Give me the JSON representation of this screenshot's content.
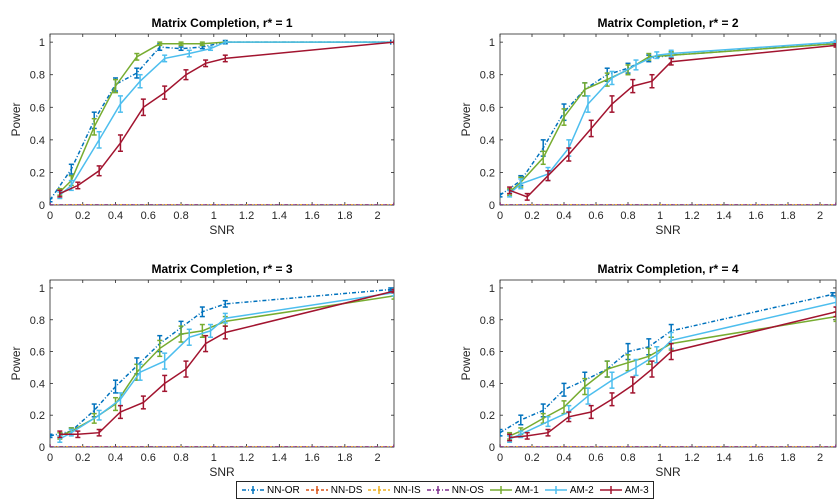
{
  "legend": {
    "entries": [
      {
        "label": "NN-OR",
        "color": "#0072BD",
        "dash": "4,2,1,2"
      },
      {
        "label": "NN-DS",
        "color": "#D95319",
        "dash": "3,2"
      },
      {
        "label": "NN-IS",
        "color": "#EDB120",
        "dash": "3,2"
      },
      {
        "label": "NN-OS",
        "color": "#7E2F8E",
        "dash": "4,2,1,2"
      },
      {
        "label": "AM-1",
        "color": "#77AC30",
        "dash": ""
      },
      {
        "label": "AM-2",
        "color": "#4DBEEE",
        "dash": ""
      },
      {
        "label": "AM-3",
        "color": "#A2142F",
        "dash": ""
      }
    ]
  },
  "chart_data": [
    {
      "type": "line",
      "title": "Matrix Completion, r* = 1",
      "xlabel": "SNR",
      "ylabel": "Power",
      "xlim": [
        0,
        2.1
      ],
      "ylim": [
        0,
        1.05
      ],
      "xticks": [
        "0",
        "0.2",
        "0.4",
        "0.6",
        "0.8",
        "1",
        "1.2",
        "1.4",
        "1.6",
        "1.8",
        "2"
      ],
      "yticks": [
        "0",
        "0.2",
        "0.4",
        "0.6",
        "0.8",
        "1"
      ],
      "series": [
        {
          "name": "NN-OR",
          "x": [
            0,
            0.13,
            0.27,
            0.4,
            0.53,
            0.67,
            0.8,
            0.93,
            1.07,
            2.08
          ],
          "y": [
            0.03,
            0.22,
            0.52,
            0.74,
            0.81,
            0.97,
            0.96,
            0.97,
            1.0,
            1.0
          ],
          "err": [
            0.01,
            0.03,
            0.05,
            0.04,
            0.03,
            0.02,
            0.01,
            0.01,
            0.01,
            0.0
          ]
        },
        {
          "name": "NN-DS",
          "x": [
            0,
            2.1
          ],
          "y": [
            0.0,
            0.0
          ],
          "err": [
            0.0,
            0.0
          ]
        },
        {
          "name": "NN-IS",
          "x": [
            0,
            2.1
          ],
          "y": [
            0.0,
            0.0
          ],
          "err": [
            0.0,
            0.0
          ]
        },
        {
          "name": "NN-OS",
          "x": [
            0,
            2.1
          ],
          "y": [
            0.0,
            0.0
          ],
          "err": [
            0.0,
            0.0
          ]
        },
        {
          "name": "AM-1",
          "x": [
            0.06,
            0.13,
            0.27,
            0.4,
            0.53,
            0.67,
            0.8,
            0.93,
            1.07,
            2.1
          ],
          "y": [
            0.08,
            0.15,
            0.48,
            0.73,
            0.91,
            0.99,
            0.99,
            0.99,
            1.0,
            1.0
          ],
          "err": [
            0.02,
            0.03,
            0.05,
            0.04,
            0.02,
            0.01,
            0.01,
            0.01,
            0.0,
            0.0
          ]
        },
        {
          "name": "AM-2",
          "x": [
            0.06,
            0.13,
            0.3,
            0.43,
            0.55,
            0.7,
            0.85,
            0.98,
            1.07,
            2.1
          ],
          "y": [
            0.06,
            0.12,
            0.4,
            0.62,
            0.76,
            0.9,
            0.93,
            0.96,
            1.0,
            1.0
          ],
          "err": [
            0.02,
            0.03,
            0.05,
            0.05,
            0.04,
            0.02,
            0.02,
            0.01,
            0.0,
            0.0
          ]
        },
        {
          "name": "AM-3",
          "x": [
            0.06,
            0.17,
            0.3,
            0.43,
            0.57,
            0.7,
            0.83,
            0.95,
            1.07,
            2.1
          ],
          "y": [
            0.07,
            0.12,
            0.21,
            0.38,
            0.6,
            0.69,
            0.8,
            0.87,
            0.9,
            1.0
          ],
          "err": [
            0.02,
            0.02,
            0.03,
            0.05,
            0.05,
            0.04,
            0.03,
            0.02,
            0.02,
            0.0
          ]
        }
      ]
    },
    {
      "type": "line",
      "title": "Matrix Completion, r* = 2",
      "xlabel": "SNR",
      "ylabel": "Power",
      "xlim": [
        0,
        2.1
      ],
      "ylim": [
        0,
        1.05
      ],
      "xticks": [
        "0",
        "0.2",
        "0.4",
        "0.6",
        "0.8",
        "1",
        "1.2",
        "1.4",
        "1.6",
        "1.8",
        "2"
      ],
      "yticks": [
        "0",
        "0.2",
        "0.4",
        "0.6",
        "0.8",
        "1"
      ],
      "series": [
        {
          "name": "NN-OR",
          "x": [
            0,
            0.13,
            0.27,
            0.4,
            0.53,
            0.67,
            0.8,
            0.93,
            1.07,
            2.08
          ],
          "y": [
            0.06,
            0.15,
            0.35,
            0.57,
            0.71,
            0.8,
            0.84,
            0.9,
            0.92,
            0.99
          ],
          "err": [
            0.01,
            0.03,
            0.05,
            0.05,
            0.04,
            0.04,
            0.03,
            0.02,
            0.02,
            0.01
          ]
        },
        {
          "name": "NN-DS",
          "x": [
            0,
            2.1
          ],
          "y": [
            0.0,
            0.0
          ],
          "err": [
            0.0,
            0.0
          ]
        },
        {
          "name": "NN-IS",
          "x": [
            0,
            2.1
          ],
          "y": [
            0.0,
            0.0
          ],
          "err": [
            0.0,
            0.0
          ]
        },
        {
          "name": "NN-OS",
          "x": [
            0,
            2.1
          ],
          "y": [
            0.0,
            0.0
          ],
          "err": [
            0.0,
            0.0
          ]
        },
        {
          "name": "AM-1",
          "x": [
            0.06,
            0.13,
            0.27,
            0.4,
            0.53,
            0.67,
            0.8,
            0.93,
            1.07,
            2.1
          ],
          "y": [
            0.08,
            0.14,
            0.29,
            0.54,
            0.71,
            0.77,
            0.83,
            0.91,
            0.92,
            0.99
          ],
          "err": [
            0.02,
            0.03,
            0.04,
            0.05,
            0.04,
            0.04,
            0.03,
            0.02,
            0.02,
            0.01
          ]
        },
        {
          "name": "AM-2",
          "x": [
            0.06,
            0.13,
            0.3,
            0.43,
            0.55,
            0.7,
            0.85,
            0.98,
            1.07,
            2.1
          ],
          "y": [
            0.07,
            0.13,
            0.19,
            0.35,
            0.62,
            0.78,
            0.86,
            0.92,
            0.93,
            1.0
          ],
          "err": [
            0.02,
            0.03,
            0.04,
            0.05,
            0.05,
            0.04,
            0.03,
            0.02,
            0.02,
            0.01
          ]
        },
        {
          "name": "AM-3",
          "x": [
            0.06,
            0.17,
            0.3,
            0.43,
            0.57,
            0.7,
            0.83,
            0.95,
            1.07,
            2.1
          ],
          "y": [
            0.09,
            0.05,
            0.18,
            0.31,
            0.47,
            0.62,
            0.73,
            0.76,
            0.88,
            0.98
          ],
          "err": [
            0.02,
            0.02,
            0.03,
            0.04,
            0.05,
            0.05,
            0.04,
            0.04,
            0.02,
            0.01
          ]
        }
      ]
    },
    {
      "type": "line",
      "title": "Matrix Completion, r* = 3",
      "xlabel": "SNR",
      "ylabel": "Power",
      "xlim": [
        0,
        2.1
      ],
      "ylim": [
        0,
        1.05
      ],
      "xticks": [
        "0",
        "0.2",
        "0.4",
        "0.6",
        "0.8",
        "1",
        "1.2",
        "1.4",
        "1.6",
        "1.8",
        "2"
      ],
      "yticks": [
        "0",
        "0.2",
        "0.4",
        "0.6",
        "0.8",
        "1"
      ],
      "series": [
        {
          "name": "NN-OR",
          "x": [
            0,
            0.13,
            0.27,
            0.4,
            0.53,
            0.67,
            0.8,
            0.93,
            1.07,
            2.08
          ],
          "y": [
            0.07,
            0.1,
            0.23,
            0.38,
            0.51,
            0.65,
            0.75,
            0.85,
            0.9,
            0.99
          ],
          "err": [
            0.01,
            0.02,
            0.04,
            0.04,
            0.05,
            0.05,
            0.04,
            0.03,
            0.02,
            0.01
          ]
        },
        {
          "name": "NN-DS",
          "x": [
            0,
            2.1
          ],
          "y": [
            0.0,
            0.0
          ],
          "err": [
            0.0,
            0.0
          ]
        },
        {
          "name": "NN-IS",
          "x": [
            0,
            2.1
          ],
          "y": [
            0.0,
            0.0
          ],
          "err": [
            0.0,
            0.0
          ]
        },
        {
          "name": "NN-OS",
          "x": [
            0,
            2.1
          ],
          "y": [
            0.0,
            0.0
          ],
          "err": [
            0.0,
            0.0
          ]
        },
        {
          "name": "AM-1",
          "x": [
            0.06,
            0.13,
            0.27,
            0.4,
            0.53,
            0.67,
            0.8,
            0.93,
            1.07,
            2.1
          ],
          "y": [
            0.07,
            0.1,
            0.18,
            0.27,
            0.47,
            0.62,
            0.71,
            0.73,
            0.79,
            0.95
          ],
          "err": [
            0.02,
            0.02,
            0.03,
            0.04,
            0.05,
            0.05,
            0.05,
            0.04,
            0.03,
            0.02
          ]
        },
        {
          "name": "AM-2",
          "x": [
            0.06,
            0.13,
            0.3,
            0.43,
            0.55,
            0.7,
            0.85,
            0.98,
            1.07,
            2.1
          ],
          "y": [
            0.05,
            0.09,
            0.2,
            0.3,
            0.47,
            0.54,
            0.69,
            0.73,
            0.81,
            0.97
          ],
          "err": [
            0.02,
            0.02,
            0.03,
            0.04,
            0.05,
            0.05,
            0.05,
            0.04,
            0.03,
            0.02
          ]
        },
        {
          "name": "AM-3",
          "x": [
            0.06,
            0.17,
            0.3,
            0.43,
            0.57,
            0.7,
            0.83,
            0.95,
            1.07,
            2.1
          ],
          "y": [
            0.08,
            0.08,
            0.09,
            0.22,
            0.28,
            0.4,
            0.49,
            0.65,
            0.72,
            0.98
          ],
          "err": [
            0.02,
            0.02,
            0.02,
            0.04,
            0.04,
            0.05,
            0.05,
            0.05,
            0.04,
            0.01
          ]
        }
      ]
    },
    {
      "type": "line",
      "title": "Matrix Completion, r* = 4",
      "xlabel": "SNR",
      "ylabel": "Power",
      "xlim": [
        0,
        2.1
      ],
      "ylim": [
        0,
        1.05
      ],
      "xticks": [
        "0",
        "0.2",
        "0.4",
        "0.6",
        "0.8",
        "1",
        "1.2",
        "1.4",
        "1.6",
        "1.8",
        "2"
      ],
      "yticks": [
        "0",
        "0.2",
        "0.4",
        "0.6",
        "0.8",
        "1"
      ],
      "series": [
        {
          "name": "NN-OR",
          "x": [
            0,
            0.13,
            0.27,
            0.4,
            0.53,
            0.67,
            0.8,
            0.93,
            1.07,
            2.08
          ],
          "y": [
            0.09,
            0.17,
            0.23,
            0.36,
            0.42,
            0.49,
            0.6,
            0.63,
            0.73,
            0.96
          ],
          "err": [
            0.02,
            0.03,
            0.04,
            0.04,
            0.05,
            0.05,
            0.05,
            0.05,
            0.04,
            0.01
          ]
        },
        {
          "name": "NN-DS",
          "x": [
            0,
            2.1
          ],
          "y": [
            0.0,
            0.0
          ],
          "err": [
            0.0,
            0.0
          ]
        },
        {
          "name": "NN-IS",
          "x": [
            0,
            2.1
          ],
          "y": [
            0.0,
            0.0
          ],
          "err": [
            0.0,
            0.0
          ]
        },
        {
          "name": "NN-OS",
          "x": [
            0,
            2.1
          ],
          "y": [
            0.0,
            0.0
          ],
          "err": [
            0.0,
            0.0
          ]
        },
        {
          "name": "AM-1",
          "x": [
            0.06,
            0.13,
            0.27,
            0.4,
            0.53,
            0.67,
            0.8,
            0.93,
            1.07,
            2.1
          ],
          "y": [
            0.07,
            0.1,
            0.18,
            0.25,
            0.38,
            0.49,
            0.53,
            0.57,
            0.65,
            0.82
          ],
          "err": [
            0.02,
            0.02,
            0.03,
            0.04,
            0.05,
            0.05,
            0.05,
            0.05,
            0.04,
            0.03
          ]
        },
        {
          "name": "AM-2",
          "x": [
            0.06,
            0.13,
            0.3,
            0.43,
            0.55,
            0.7,
            0.85,
            0.98,
            1.07,
            2.1
          ],
          "y": [
            0.05,
            0.08,
            0.16,
            0.22,
            0.32,
            0.42,
            0.5,
            0.58,
            0.67,
            0.91
          ],
          "err": [
            0.02,
            0.02,
            0.03,
            0.04,
            0.05,
            0.05,
            0.05,
            0.05,
            0.05,
            0.03
          ]
        },
        {
          "name": "AM-3",
          "x": [
            0.06,
            0.17,
            0.3,
            0.43,
            0.57,
            0.7,
            0.83,
            0.95,
            1.07,
            2.1
          ],
          "y": [
            0.06,
            0.07,
            0.09,
            0.19,
            0.22,
            0.3,
            0.39,
            0.49,
            0.6,
            0.85
          ],
          "err": [
            0.02,
            0.02,
            0.02,
            0.03,
            0.04,
            0.04,
            0.05,
            0.05,
            0.05,
            0.03
          ]
        }
      ]
    }
  ]
}
